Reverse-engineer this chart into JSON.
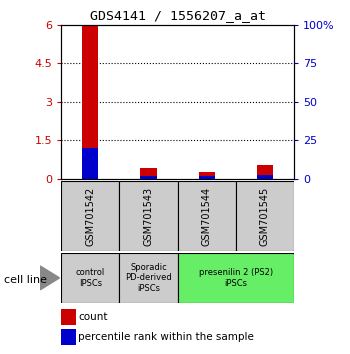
{
  "title": "GDS4141 / 1556207_a_at",
  "samples": [
    "GSM701542",
    "GSM701543",
    "GSM701544",
    "GSM701545"
  ],
  "count_values": [
    6.0,
    0.42,
    0.25,
    0.52
  ],
  "percentile_values": [
    20.0,
    2.0,
    1.67,
    2.67
  ],
  "ylim_left": [
    0,
    6
  ],
  "ylim_right": [
    0,
    100
  ],
  "yticks_left": [
    0,
    1.5,
    3,
    4.5,
    6
  ],
  "yticks_right": [
    0,
    25,
    50,
    75,
    100
  ],
  "ytick_labels_left": [
    "0",
    "1.5",
    "3",
    "4.5",
    "6"
  ],
  "ytick_labels_right": [
    "0",
    "25",
    "50",
    "75",
    "100%"
  ],
  "left_tick_color": "#cc0000",
  "right_tick_color": "#0000cc",
  "count_color": "#cc0000",
  "percentile_color": "#0000cc",
  "group_data": [
    {
      "label": "control\nIPSCs",
      "color": "#cccccc",
      "xstart": 0,
      "xend": 1
    },
    {
      "label": "Sporadic\nPD-derived\niPSCs",
      "color": "#cccccc",
      "xstart": 1,
      "xend": 2
    },
    {
      "label": "presenilin 2 (PS2)\niPSCs",
      "color": "#66ee66",
      "xstart": 2,
      "xend": 4
    }
  ],
  "cell_line_label": "cell line",
  "legend_count": "count",
  "legend_percentile": "percentile rank within the sample",
  "sample_box_color": "#cccccc",
  "bg_color": "#ffffff"
}
